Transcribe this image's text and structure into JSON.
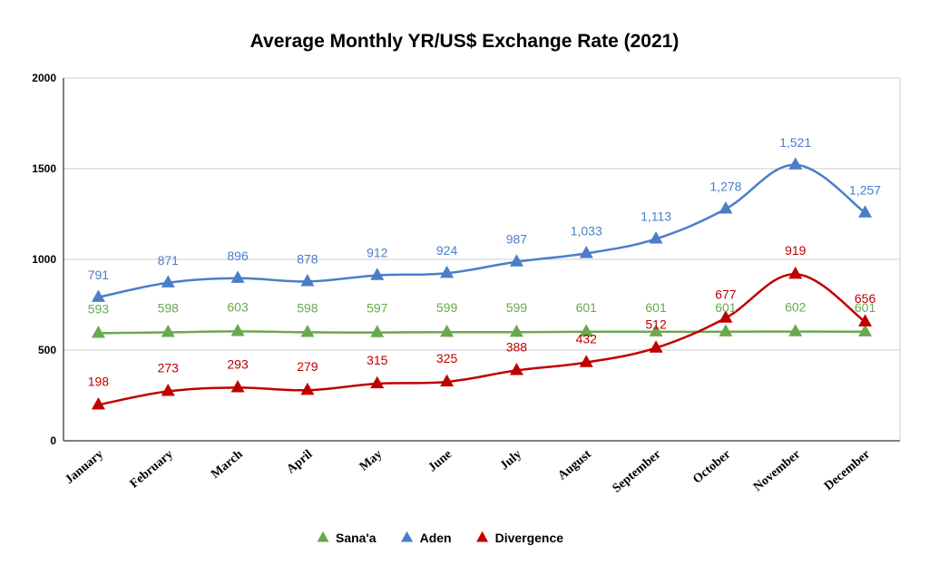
{
  "chart_data": {
    "type": "line",
    "title": "Average Monthly YR/US$ Exchange Rate (2021)",
    "categories": [
      "January",
      "February",
      "March",
      "April",
      "May",
      "June",
      "July",
      "August",
      "September",
      "October",
      "November",
      "December"
    ],
    "ylim": [
      0,
      2000
    ],
    "yticks": [
      0,
      500,
      1000,
      1500,
      2000
    ],
    "grid": true,
    "legend": "bottom",
    "series": [
      {
        "name": "Sana'a",
        "color": "#6aa84f",
        "values": [
          593,
          598,
          603,
          598,
          597,
          599,
          599,
          601,
          601,
          601,
          602,
          601
        ],
        "labels": [
          "593",
          "598",
          "603",
          "598",
          "597",
          "599",
          "599",
          "601",
          "601",
          "601",
          "602",
          "601"
        ]
      },
      {
        "name": "Aden",
        "color": "#4a7ec9",
        "values": [
          791,
          871,
          896,
          878,
          912,
          924,
          987,
          1033,
          1113,
          1278,
          1521,
          1257
        ],
        "labels": [
          "791",
          "871",
          "896",
          "878",
          "912",
          "924",
          "987",
          "1,033",
          "1,113",
          "1,278",
          "1,521",
          "1,257"
        ]
      },
      {
        "name": "Divergence",
        "color": "#c00000",
        "values": [
          198,
          273,
          293,
          279,
          315,
          325,
          388,
          432,
          512,
          677,
          919,
          656
        ],
        "labels": [
          "198",
          "273",
          "293",
          "279",
          "315",
          "325",
          "388",
          "432",
          "512",
          "677",
          "919",
          "656"
        ]
      }
    ]
  }
}
